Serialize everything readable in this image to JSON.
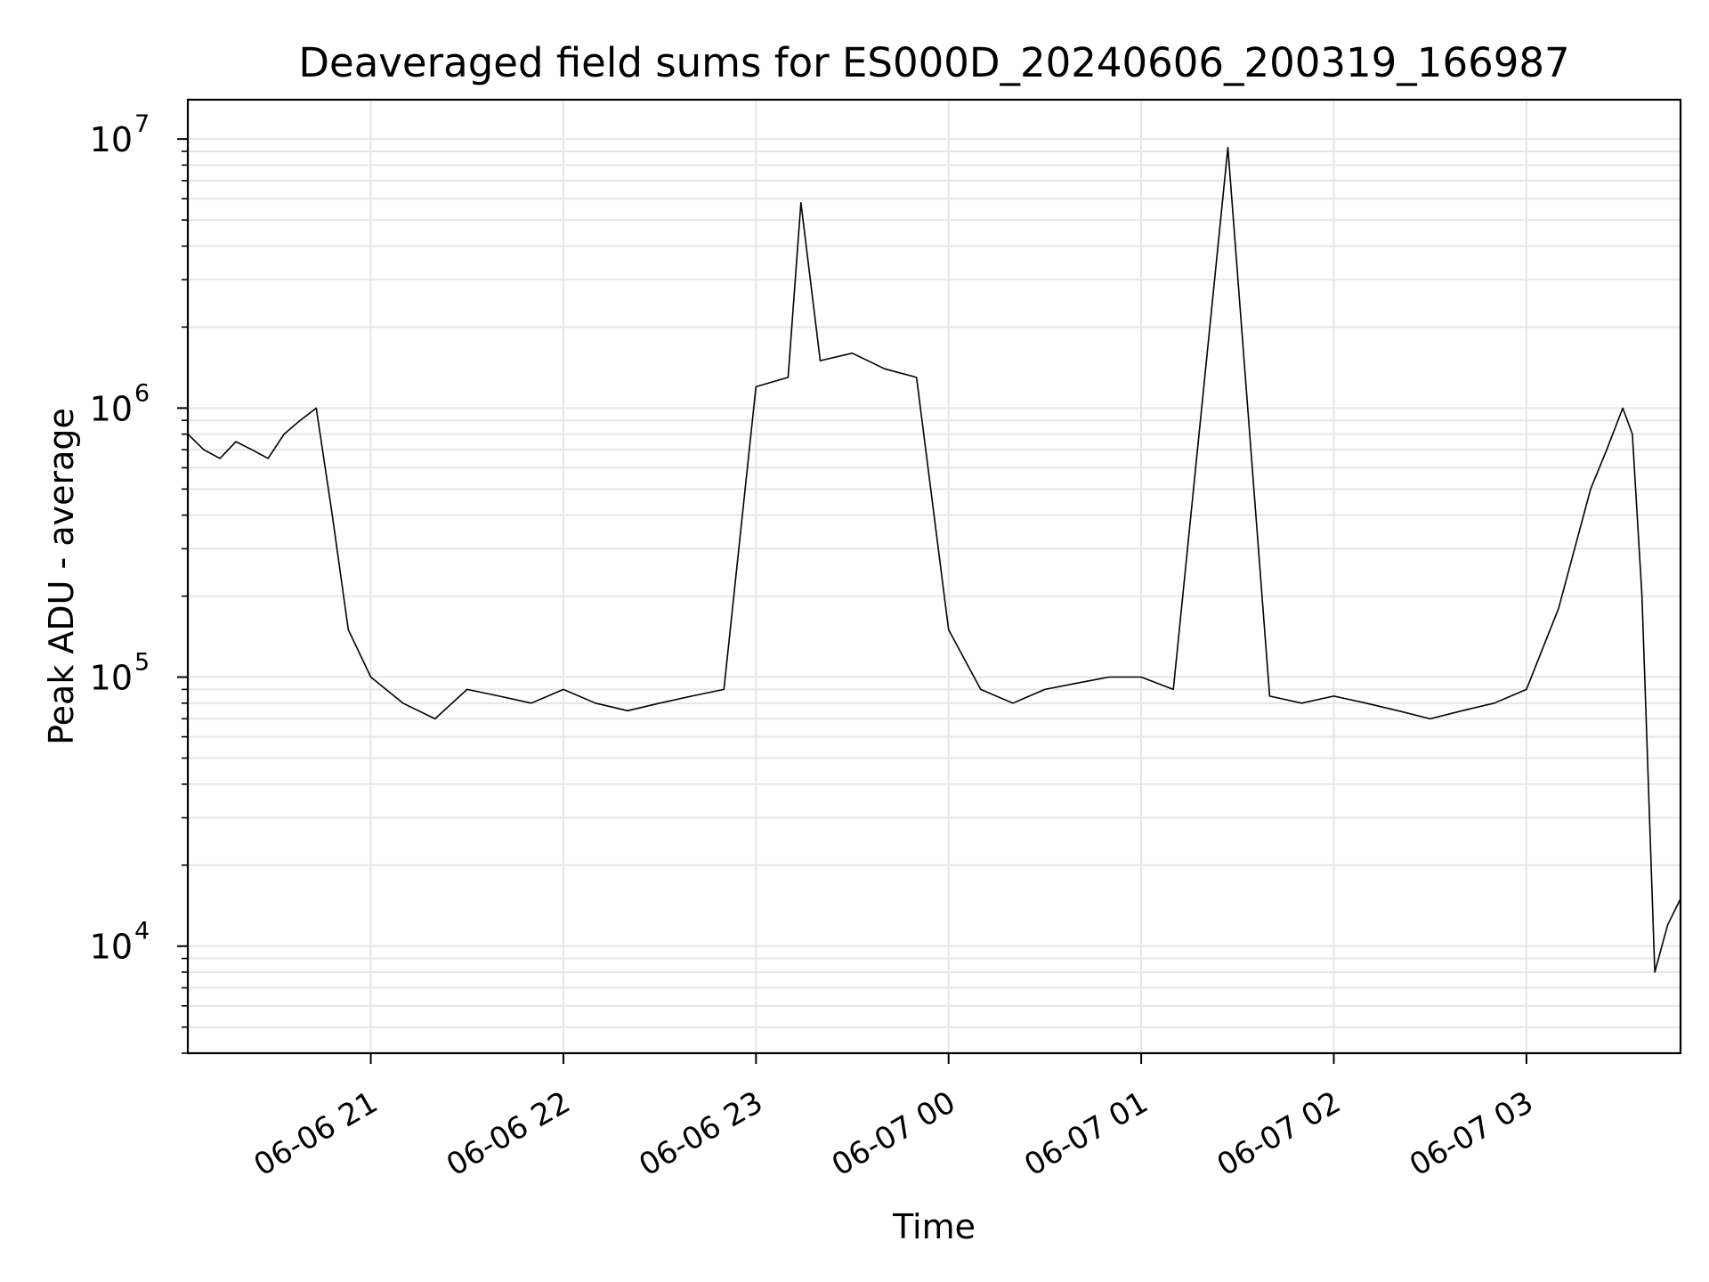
{
  "chart_data": {
    "type": "line",
    "title": "Deaveraged field sums for ES000D_20240606_200319_166987",
    "xlabel": "Time",
    "ylabel": "Peak ADU - average",
    "yscale": "log",
    "ylim": [
      4000,
      14000000
    ],
    "xlim": [
      "2024-06-06 20:03",
      "2024-06-07 03:48"
    ],
    "grid": true,
    "grid_color": "#e6e6e6",
    "line_color": "#000000",
    "legend": "none",
    "x_ticks": [
      {
        "value": "2024-06-06 21:00",
        "label": "06-06 21"
      },
      {
        "value": "2024-06-06 22:00",
        "label": "06-06 22"
      },
      {
        "value": "2024-06-06 23:00",
        "label": "06-06 23"
      },
      {
        "value": "2024-06-07 00:00",
        "label": "06-07 00"
      },
      {
        "value": "2024-06-07 01:00",
        "label": "06-07 01"
      },
      {
        "value": "2024-06-07 02:00",
        "label": "06-07 02"
      },
      {
        "value": "2024-06-07 03:00",
        "label": "06-07 03"
      }
    ],
    "y_ticks": [
      {
        "value": 10000,
        "base": "10",
        "exp": "4"
      },
      {
        "value": 100000,
        "base": "10",
        "exp": "5"
      },
      {
        "value": 1000000,
        "base": "10",
        "exp": "6"
      },
      {
        "value": 10000000,
        "base": "10",
        "exp": "7"
      }
    ],
    "series": [
      {
        "x": [
          "2024-06-06 20:03",
          "2024-06-06 20:08",
          "2024-06-06 20:13",
          "2024-06-06 20:18",
          "2024-06-06 20:23",
          "2024-06-06 20:28",
          "2024-06-06 20:33",
          "2024-06-06 20:38",
          "2024-06-06 20:43",
          "2024-06-06 20:48",
          "2024-06-06 20:53",
          "2024-06-06 21:00",
          "2024-06-06 21:10",
          "2024-06-06 21:20",
          "2024-06-06 21:30",
          "2024-06-06 21:40",
          "2024-06-06 21:50",
          "2024-06-06 22:00",
          "2024-06-06 22:10",
          "2024-06-06 22:20",
          "2024-06-06 22:30",
          "2024-06-06 22:40",
          "2024-06-06 22:50",
          "2024-06-06 23:00",
          "2024-06-06 23:10",
          "2024-06-06 23:14",
          "2024-06-06 23:20",
          "2024-06-06 23:30",
          "2024-06-06 23:40",
          "2024-06-06 23:50",
          "2024-06-07 00:00",
          "2024-06-07 00:10",
          "2024-06-07 00:20",
          "2024-06-07 00:30",
          "2024-06-07 00:40",
          "2024-06-07 00:50",
          "2024-06-07 01:00",
          "2024-06-07 01:10",
          "2024-06-07 01:27",
          "2024-06-07 01:40",
          "2024-06-07 01:50",
          "2024-06-07 02:00",
          "2024-06-07 02:10",
          "2024-06-07 02:20",
          "2024-06-07 02:30",
          "2024-06-07 02:40",
          "2024-06-07 02:50",
          "2024-06-07 03:00",
          "2024-06-07 03:10",
          "2024-06-07 03:15",
          "2024-06-07 03:20",
          "2024-06-07 03:25",
          "2024-06-07 03:30",
          "2024-06-07 03:33",
          "2024-06-07 03:36",
          "2024-06-07 03:40",
          "2024-06-07 03:44",
          "2024-06-07 03:48"
        ],
        "y": [
          800000,
          700000,
          650000,
          750000,
          700000,
          650000,
          800000,
          900000,
          1000000,
          400000,
          150000,
          100000,
          80000,
          70000,
          90000,
          85000,
          80000,
          90000,
          80000,
          75000,
          80000,
          85000,
          90000,
          1200000,
          1300000,
          5800000,
          1500000,
          1600000,
          1400000,
          1300000,
          150000,
          90000,
          80000,
          90000,
          95000,
          100000,
          100000,
          90000,
          9300000,
          85000,
          80000,
          85000,
          80000,
          75000,
          70000,
          75000,
          80000,
          90000,
          180000,
          300000,
          500000,
          700000,
          1000000,
          800000,
          200000,
          8000,
          12000,
          15000
        ]
      }
    ]
  }
}
